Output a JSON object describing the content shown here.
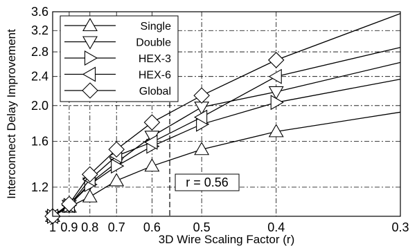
{
  "chart_data": {
    "type": "line",
    "title": "",
    "xlabel": "3D Wire Scaling Factor  (r)",
    "ylabel": "Interconnect Delay Improvement",
    "x_reciprocal_scale": true,
    "y_log_scale": true,
    "x_reversed": true,
    "xlim": [
      1.0,
      0.3
    ],
    "ylim": [
      1.0,
      3.6
    ],
    "x_ticks": [
      1,
      0.9,
      0.8,
      0.7,
      0.6,
      0.5,
      0.4,
      0.3
    ],
    "x_tick_labels": [
      "1",
      "0.9",
      "0.8",
      "0.7",
      "0.6",
      "0.5",
      "0.4",
      "0.3"
    ],
    "y_ticks": [
      1.2,
      1.6,
      2.0,
      2.4,
      2.8,
      3.2,
      3.6
    ],
    "y_tick_labels": [
      "1.2",
      "1.6",
      "2.0",
      "2.4",
      "2.8",
      "3.2",
      "3.6"
    ],
    "grid": true,
    "legend_position": "top-left",
    "x": [
      1,
      0.9,
      0.8,
      0.7,
      0.6,
      0.5,
      0.4,
      0.3
    ],
    "series": [
      {
        "name": "Single",
        "marker": "triangle-up",
        "values": [
          1.0,
          1.06,
          1.13,
          1.25,
          1.37,
          1.52,
          1.7,
          1.92
        ]
      },
      {
        "name": "Double",
        "marker": "triangle-down",
        "values": [
          1.0,
          1.07,
          1.23,
          1.4,
          1.65,
          1.98,
          2.18,
          2.62
        ]
      },
      {
        "name": "HEX-3",
        "marker": "triangle-right",
        "values": [
          1.0,
          1.07,
          1.22,
          1.37,
          1.55,
          1.78,
          2.04,
          2.36
        ]
      },
      {
        "name": "HEX-6",
        "marker": "triangle-left",
        "values": [
          1.0,
          1.07,
          1.26,
          1.46,
          1.59,
          1.86,
          2.4,
          2.88
        ]
      },
      {
        "name": "Global",
        "marker": "diamond",
        "values": [
          1.0,
          1.08,
          1.3,
          1.52,
          1.8,
          2.13,
          2.66,
          3.56
        ]
      }
    ],
    "annotations": [
      {
        "text": "r = 0.56",
        "x": 0.56
      }
    ]
  }
}
